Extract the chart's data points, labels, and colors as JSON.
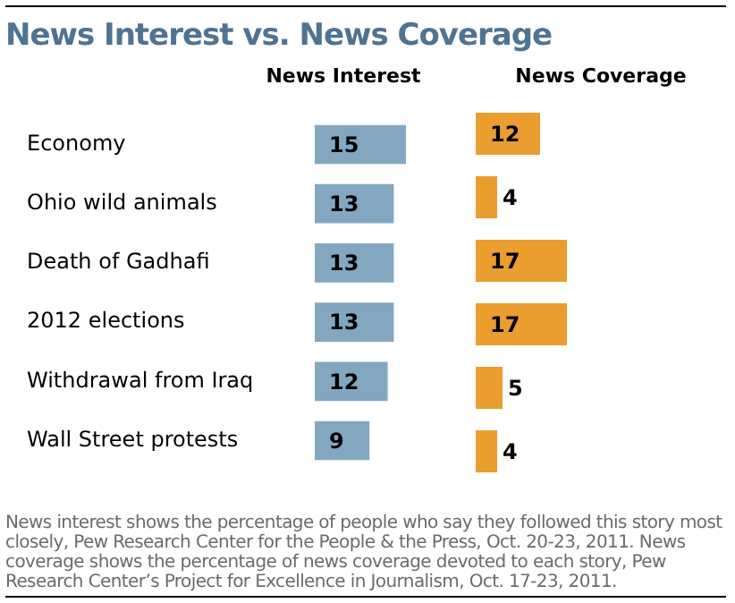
{
  "chart_data": [
    {
      "type": "bar",
      "orientation": "horizontal",
      "title": "News Interest vs. News Coverage",
      "subtitle": "News Interest",
      "categories": [
        "Economy",
        "Ohio wild animals",
        "Death of Gadhafi",
        "2012 elections",
        "Withdrawal from Iraq",
        "Wall Street protests"
      ],
      "values": [
        15,
        13,
        13,
        13,
        12,
        9
      ],
      "color": "#84a7c1",
      "data_labels": true,
      "tick_labels": "y"
    },
    {
      "type": "bar",
      "orientation": "horizontal",
      "subtitle": "News Coverage",
      "categories": [
        null,
        null,
        null,
        null,
        null,
        null
      ],
      "values": [
        12,
        4,
        17,
        17,
        5,
        4
      ],
      "color": "#e99e2f",
      "data_labels": true,
      "tick_labels": false,
      "annotations": [
        "News interest shows the percentage of people who say they followed this story most closely, Pew Research Center for the People & the Press, Oct. 20-23, 2011. News coverage shows the percentage of news coverage devoted to each story, Pew Research Center’s Project for Excellence in Journalism, Oct. 17-23, 2011."
      ]
    }
  ]
}
